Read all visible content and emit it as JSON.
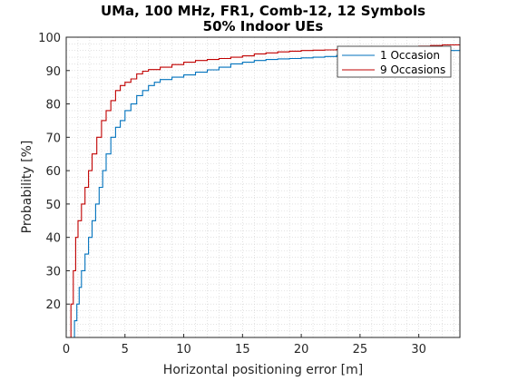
{
  "chart_data": {
    "type": "line",
    "title": "UMa, 100 MHz, FR1, Comb-12, 12 Symbols",
    "subtitle": "50% Indoor UEs",
    "xlabel": "Horizontal positioning error [m]",
    "ylabel": "Probability [%]",
    "xlim": [
      0,
      33.5
    ],
    "ylim": [
      10,
      100
    ],
    "xticks": [
      "0",
      "5",
      "10",
      "15",
      "20",
      "25",
      "30"
    ],
    "yticks": [
      "10",
      "20",
      "30",
      "40",
      "50",
      "60",
      "70",
      "80",
      "90",
      "100"
    ],
    "grid": "minor-dotted",
    "legend_position": "top-right",
    "series": [
      {
        "name": "1 Occasion",
        "color": "#0072BD",
        "x": [
          0.55,
          0.7,
          0.9,
          1.1,
          1.3,
          1.6,
          1.9,
          2.2,
          2.5,
          2.8,
          3.1,
          3.4,
          3.8,
          4.2,
          4.6,
          5.0,
          5.5,
          6.0,
          6.5,
          7.0,
          7.5,
          8.0,
          9.0,
          10.0,
          11.0,
          12.0,
          13.0,
          14.0,
          15.0,
          16.0,
          17.0,
          18.0,
          19.0,
          20.0,
          21.0,
          22.0,
          23.0,
          24.0,
          25.0,
          26.0,
          27.0,
          28.0,
          29.0,
          30.0,
          31.0,
          32.0,
          33.5
        ],
        "y": [
          10,
          15,
          20,
          25,
          30,
          35,
          40,
          45,
          50,
          55,
          60,
          65,
          70,
          73,
          75,
          78,
          80,
          82.5,
          84,
          85.5,
          86.5,
          87.3,
          88,
          88.7,
          89.5,
          90.2,
          91,
          92,
          92.5,
          93,
          93.3,
          93.5,
          93.6,
          93.8,
          94,
          94.2,
          94.5,
          94.7,
          94.9,
          95,
          95.1,
          95.3,
          95.5,
          95.6,
          95.8,
          96,
          96.3
        ]
      },
      {
        "name": "9 Occasions",
        "color": "#C00000",
        "x": [
          0.2,
          0.4,
          0.6,
          0.8,
          1.0,
          1.3,
          1.6,
          1.9,
          2.2,
          2.6,
          3.0,
          3.4,
          3.8,
          4.2,
          4.6,
          5.0,
          5.5,
          6.0,
          6.5,
          7.0,
          8.0,
          9.0,
          10.0,
          11.0,
          12.0,
          13.0,
          14.0,
          15.0,
          16.0,
          17.0,
          18.0,
          19.0,
          20.0,
          21.0,
          22.0,
          23.0,
          24.0,
          25.0,
          26.0,
          27.0,
          28.0,
          29.0,
          30.0,
          31.0,
          32.0,
          33.5
        ],
        "y": [
          10,
          20,
          30,
          40,
          45,
          50,
          55,
          60,
          65,
          70,
          75,
          78,
          81,
          84,
          85.5,
          86.5,
          87.5,
          89,
          89.8,
          90.3,
          91,
          91.8,
          92.5,
          93,
          93.3,
          93.6,
          94,
          94.4,
          95,
          95.3,
          95.6,
          95.8,
          96,
          96.1,
          96.2,
          96.3,
          96.4,
          96.6,
          96.7,
          96.8,
          97,
          97.1,
          97.3,
          97.5,
          97.7,
          97.8
        ]
      }
    ]
  }
}
